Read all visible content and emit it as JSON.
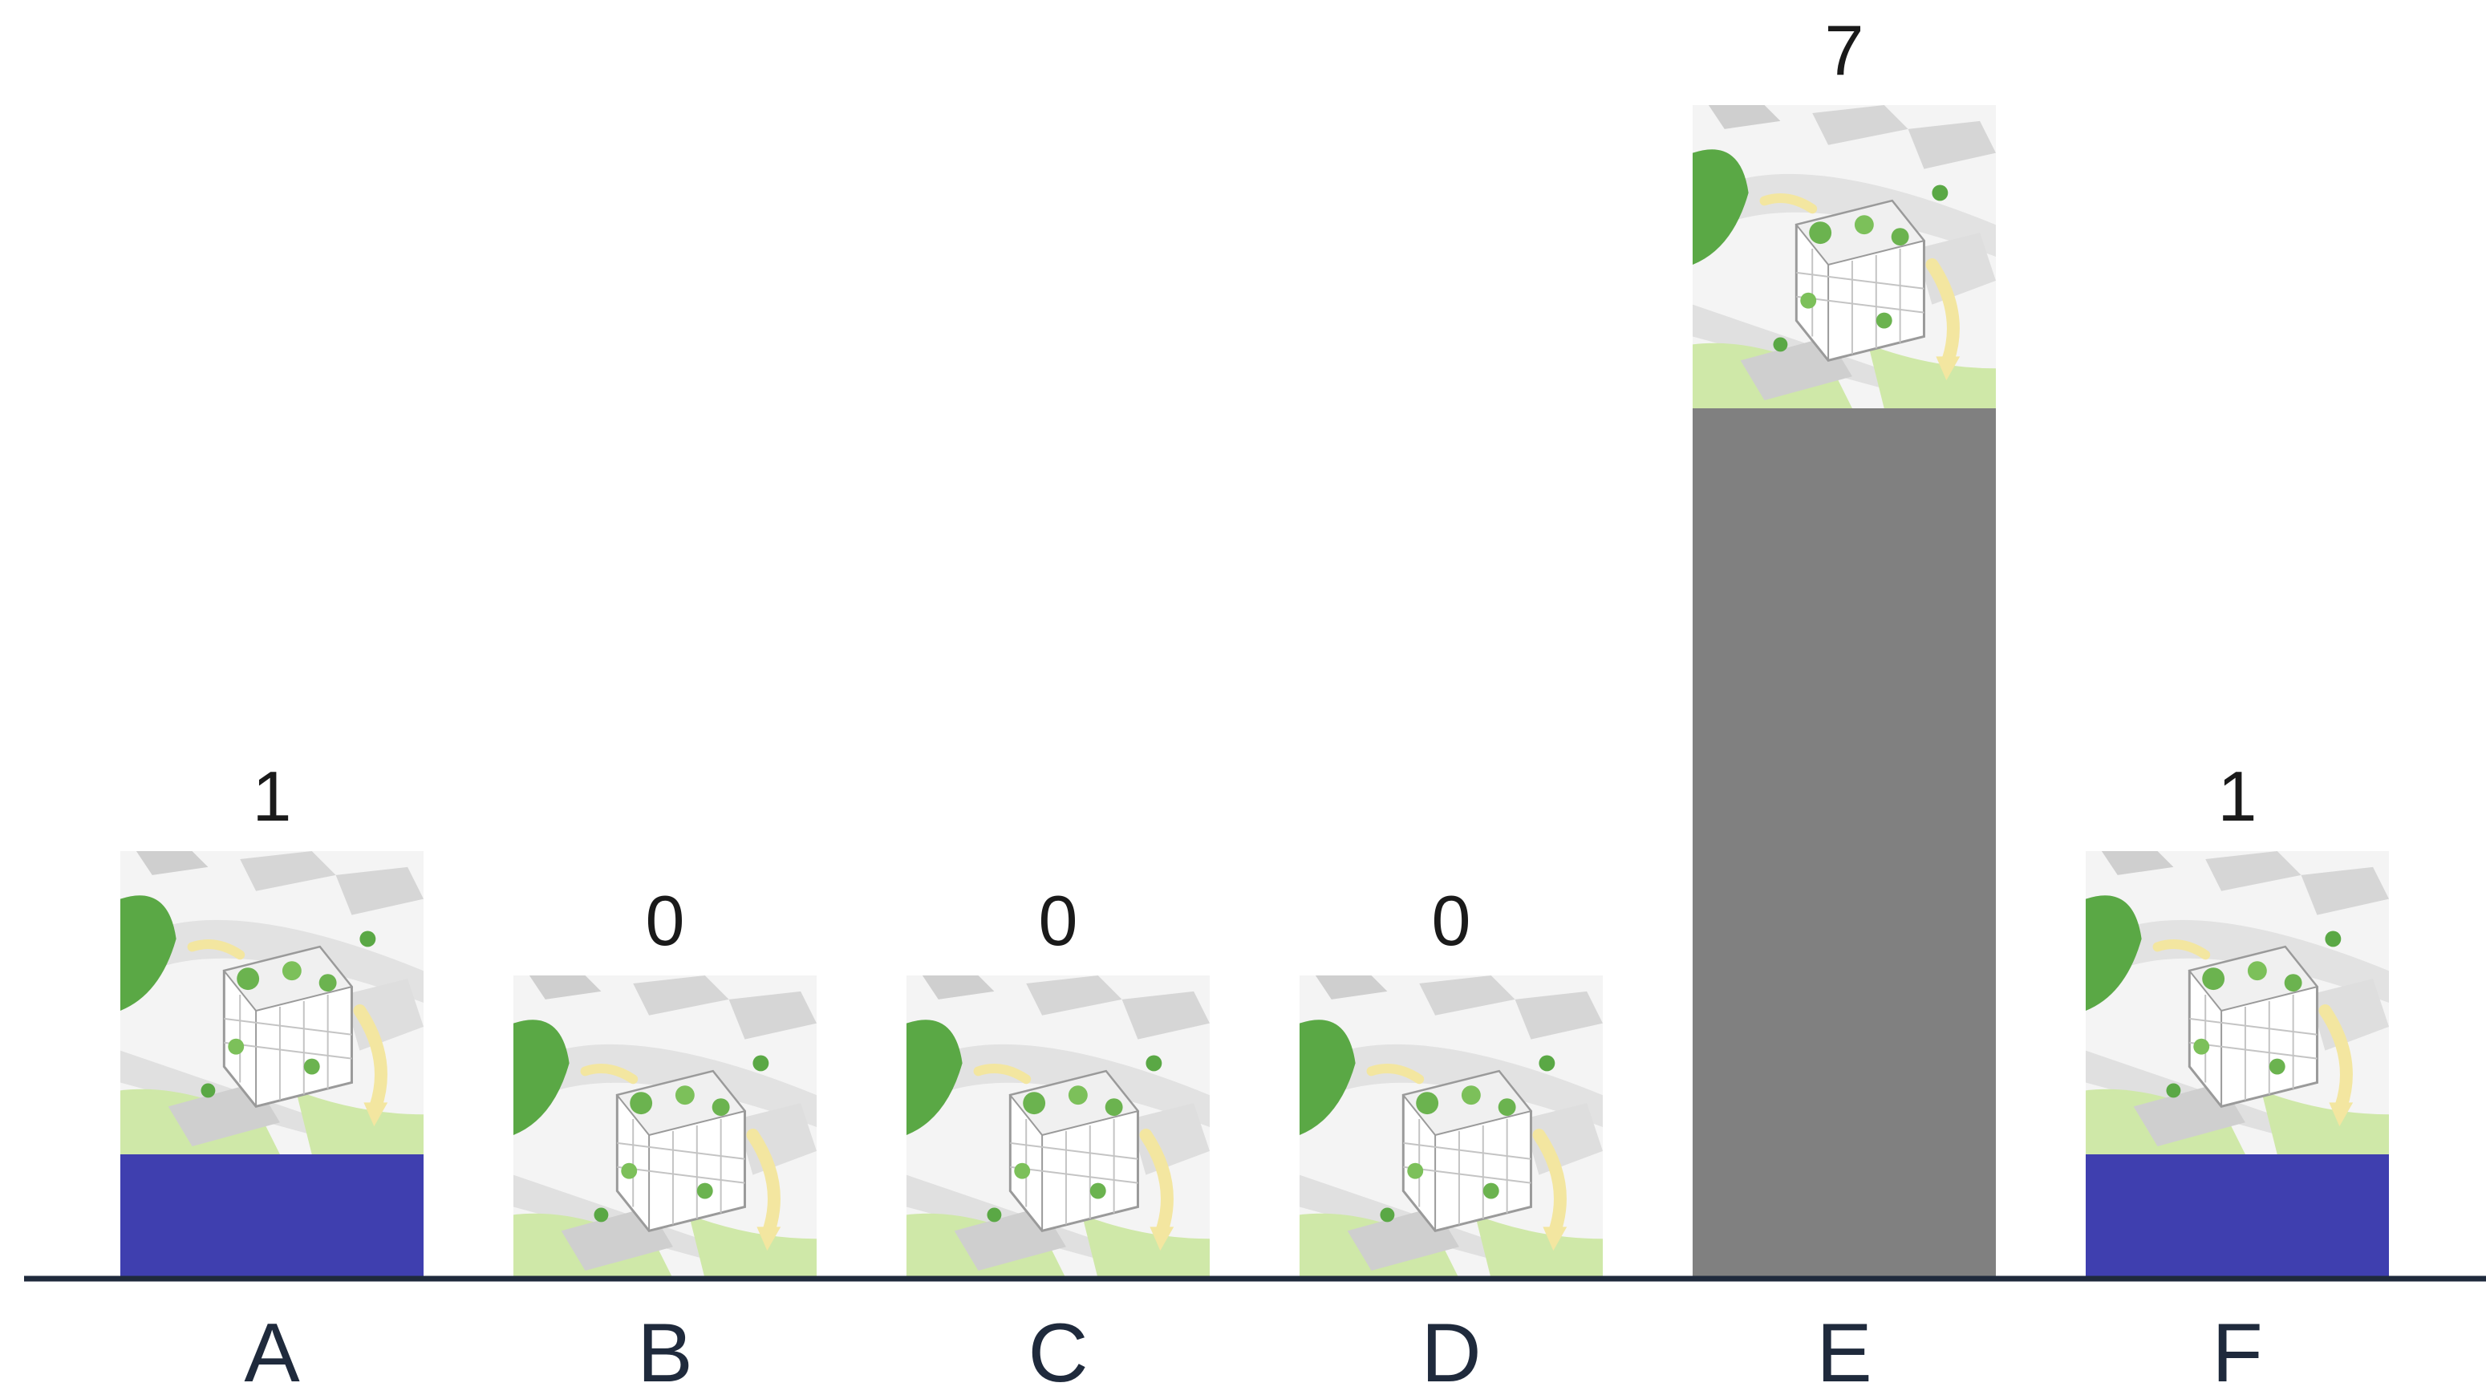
{
  "chart_data": {
    "type": "bar",
    "categories": [
      "A",
      "B",
      "C",
      "D",
      "E",
      "F"
    ],
    "values": [
      1,
      0,
      0,
      0,
      7,
      1
    ],
    "value_labels": [
      "1",
      "0",
      "0",
      "0",
      "7",
      "1"
    ],
    "bar_colors": [
      "#3f3faf",
      "#3f3faf",
      "#3f3faf",
      "#3f3faf",
      "#808080",
      "#3f3faf"
    ],
    "ylim": [
      0,
      7
    ],
    "title": "",
    "xlabel": "",
    "ylabel": "",
    "grid": false,
    "legend": "none",
    "thumbnail": "isometric-building-diagram"
  },
  "colors": {
    "axis": "#1f2a3c",
    "text": "#1a1a1a",
    "highlight_bar": "#808080",
    "default_bar": "#3f3faf"
  }
}
